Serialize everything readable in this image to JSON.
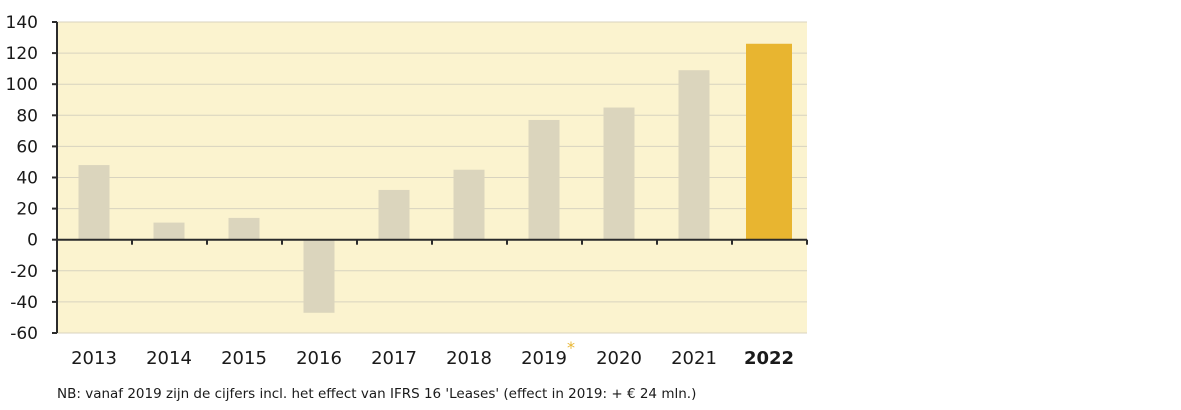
{
  "chart_data": {
    "type": "bar",
    "categories": [
      "2013",
      "2014",
      "2015",
      "2016",
      "2017",
      "2018",
      "2019",
      "2020",
      "2021",
      "2022"
    ],
    "values": [
      48,
      11,
      14,
      -47,
      32,
      45,
      77,
      85,
      109,
      126
    ],
    "highlight_index": 9,
    "marker_index": 6,
    "marker_symbol": "*",
    "ylim": [
      -60,
      140
    ],
    "yticks": [
      140,
      120,
      100,
      80,
      60,
      40,
      20,
      0,
      -20,
      -40,
      -60
    ],
    "grid": true,
    "title": "",
    "xlabel": "",
    "ylabel": ""
  },
  "colors": {
    "plot_background": "#fbf3cf",
    "bar": "#dbd5bd",
    "bar_highlight": "#e8b530",
    "grid": "#d8d3bf",
    "axis": "#2b2b2b",
    "marker": "#e8b530"
  },
  "footnote": "NB: vanaf 2019 zijn de cijfers incl. het effect van IFRS 16 'Leases' (effect in 2019: + € 24 mln.)"
}
